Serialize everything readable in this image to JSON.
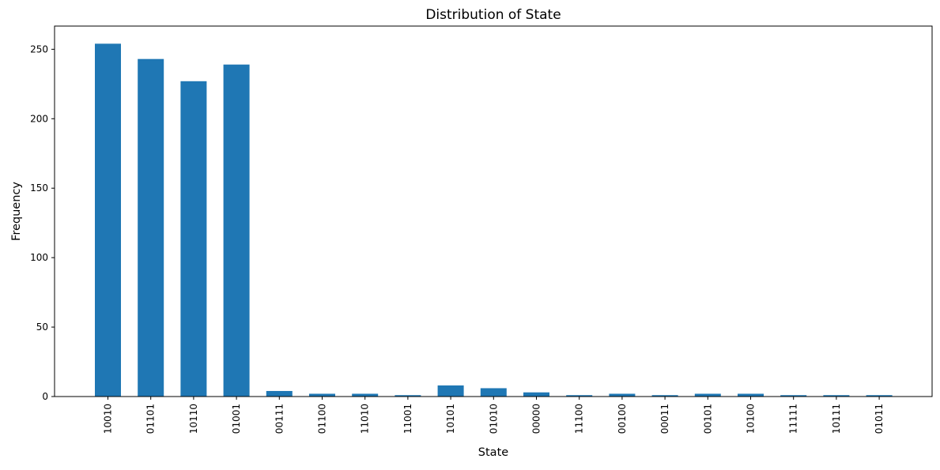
{
  "chart_data": {
    "type": "bar",
    "title": "Distribution of State",
    "xlabel": "State",
    "ylabel": "Frequency",
    "categories": [
      "10010",
      "01101",
      "10110",
      "01001",
      "00111",
      "01100",
      "11010",
      "11001",
      "10101",
      "01010",
      "00000",
      "11100",
      "00100",
      "00011",
      "00101",
      "10100",
      "11111",
      "10111",
      "01011"
    ],
    "values": [
      254,
      243,
      227,
      239,
      4,
      2,
      2,
      1,
      8,
      6,
      3,
      1,
      2,
      1,
      2,
      2,
      1,
      1,
      1
    ],
    "ylim": [
      0,
      266.7
    ],
    "yticks": [
      0,
      50,
      100,
      150,
      200,
      250
    ],
    "grid": false,
    "bar_color": "#1f77b4"
  }
}
